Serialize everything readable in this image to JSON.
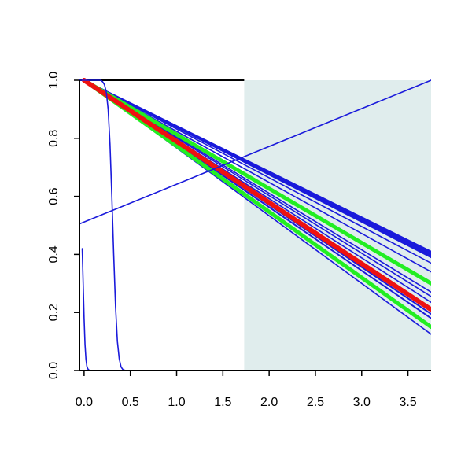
{
  "chart_data": {
    "type": "line",
    "title": "",
    "xlabel": "",
    "ylabel": "",
    "xlim": [
      -0.05,
      3.75
    ],
    "ylim": [
      0.0,
      1.0
    ],
    "x_ticks": [
      {
        "value": 0.0,
        "label": "0.0"
      },
      {
        "value": 0.5,
        "label": "0.5"
      },
      {
        "value": 1.0,
        "label": "1.0"
      },
      {
        "value": 1.5,
        "label": "1.5"
      },
      {
        "value": 2.0,
        "label": "2.0"
      },
      {
        "value": 2.5,
        "label": "2.5"
      },
      {
        "value": 3.0,
        "label": "3.0"
      },
      {
        "value": 3.5,
        "label": "3.5"
      }
    ],
    "y_ticks": [
      {
        "value": 0.0,
        "label": "0.0"
      },
      {
        "value": 0.2,
        "label": "0.2"
      },
      {
        "value": 0.4,
        "label": "0.4"
      },
      {
        "value": 0.6,
        "label": "0.6"
      },
      {
        "value": 0.8,
        "label": "0.8"
      },
      {
        "value": 1.0,
        "label": "1.0"
      }
    ],
    "grid": false,
    "legend": "none",
    "shaded_region": {
      "x_from": 1.73,
      "x_to": 3.75,
      "color": "#e0eded"
    },
    "colors": {
      "blue": "#1a1adb",
      "green": "#22ee22",
      "red": "#ee1111"
    },
    "series": [
      {
        "color": "blue",
        "width": 2,
        "x": [
          0,
          3.75
        ],
        "y": [
          1.0,
          0.41
        ]
      },
      {
        "color": "blue",
        "width": 2,
        "x": [
          0,
          3.75
        ],
        "y": [
          1.0,
          0.405
        ]
      },
      {
        "color": "blue",
        "width": 2,
        "x": [
          0,
          3.75
        ],
        "y": [
          1.0,
          0.4
        ]
      },
      {
        "color": "blue",
        "width": 2,
        "x": [
          0,
          3.75
        ],
        "y": [
          1.0,
          0.395
        ]
      },
      {
        "color": "blue",
        "width": 2,
        "x": [
          0,
          3.75
        ],
        "y": [
          1.0,
          0.39
        ]
      },
      {
        "color": "blue",
        "width": 1.6,
        "x": [
          0,
          3.75
        ],
        "y": [
          1.0,
          0.37
        ]
      },
      {
        "color": "blue",
        "width": 1.6,
        "x": [
          0,
          3.75
        ],
        "y": [
          1.0,
          0.34
        ]
      },
      {
        "color": "blue",
        "width": 1.6,
        "x": [
          0,
          3.75
        ],
        "y": [
          1.0,
          0.27
        ]
      },
      {
        "color": "blue",
        "width": 1.6,
        "x": [
          0,
          3.75
        ],
        "y": [
          1.0,
          0.255
        ]
      },
      {
        "color": "blue",
        "width": 1.6,
        "x": [
          0,
          3.75
        ],
        "y": [
          1.0,
          0.235
        ]
      },
      {
        "color": "blue",
        "width": 2,
        "x": [
          0,
          3.75
        ],
        "y": [
          1.0,
          0.195
        ]
      },
      {
        "color": "blue",
        "width": 2,
        "x": [
          0,
          3.75
        ],
        "y": [
          1.0,
          0.18
        ]
      },
      {
        "color": "blue",
        "width": 1.6,
        "x": [
          0,
          3.75
        ],
        "y": [
          1.0,
          0.125
        ]
      },
      {
        "color": "green",
        "width": 5,
        "x": [
          0,
          3.75
        ],
        "y": [
          1.0,
          0.3
        ]
      },
      {
        "color": "green",
        "width": 5,
        "x": [
          0,
          3.75
        ],
        "y": [
          1.0,
          0.15
        ]
      },
      {
        "color": "red",
        "width": 6,
        "x": [
          0,
          3.75
        ],
        "y": [
          1.0,
          0.21
        ]
      },
      {
        "color": "blue",
        "width": 1.6,
        "x": [
          -0.05,
          3.75
        ],
        "y": [
          0.505,
          1.0
        ]
      },
      {
        "color": "blue",
        "width": 1.6,
        "x": [
          -0.05,
          0.18,
          0.2,
          0.22,
          0.24,
          0.26,
          0.28,
          0.3,
          0.32,
          0.34,
          0.36,
          0.38,
          0.4,
          0.42,
          0.45,
          3.75
        ],
        "y": [
          1.0,
          1.0,
          0.995,
          0.985,
          0.96,
          0.9,
          0.78,
          0.6,
          0.4,
          0.22,
          0.1,
          0.04,
          0.012,
          0.003,
          0.0,
          0.0
        ]
      },
      {
        "color": "blue",
        "width": 1.6,
        "x": [
          -0.02,
          -0.01,
          0.0,
          0.01,
          0.02,
          0.03,
          0.04,
          0.05,
          0.07,
          3.75
        ],
        "y": [
          0.42,
          0.3,
          0.18,
          0.09,
          0.04,
          0.015,
          0.006,
          0.002,
          0.0,
          0.0
        ]
      }
    ]
  }
}
